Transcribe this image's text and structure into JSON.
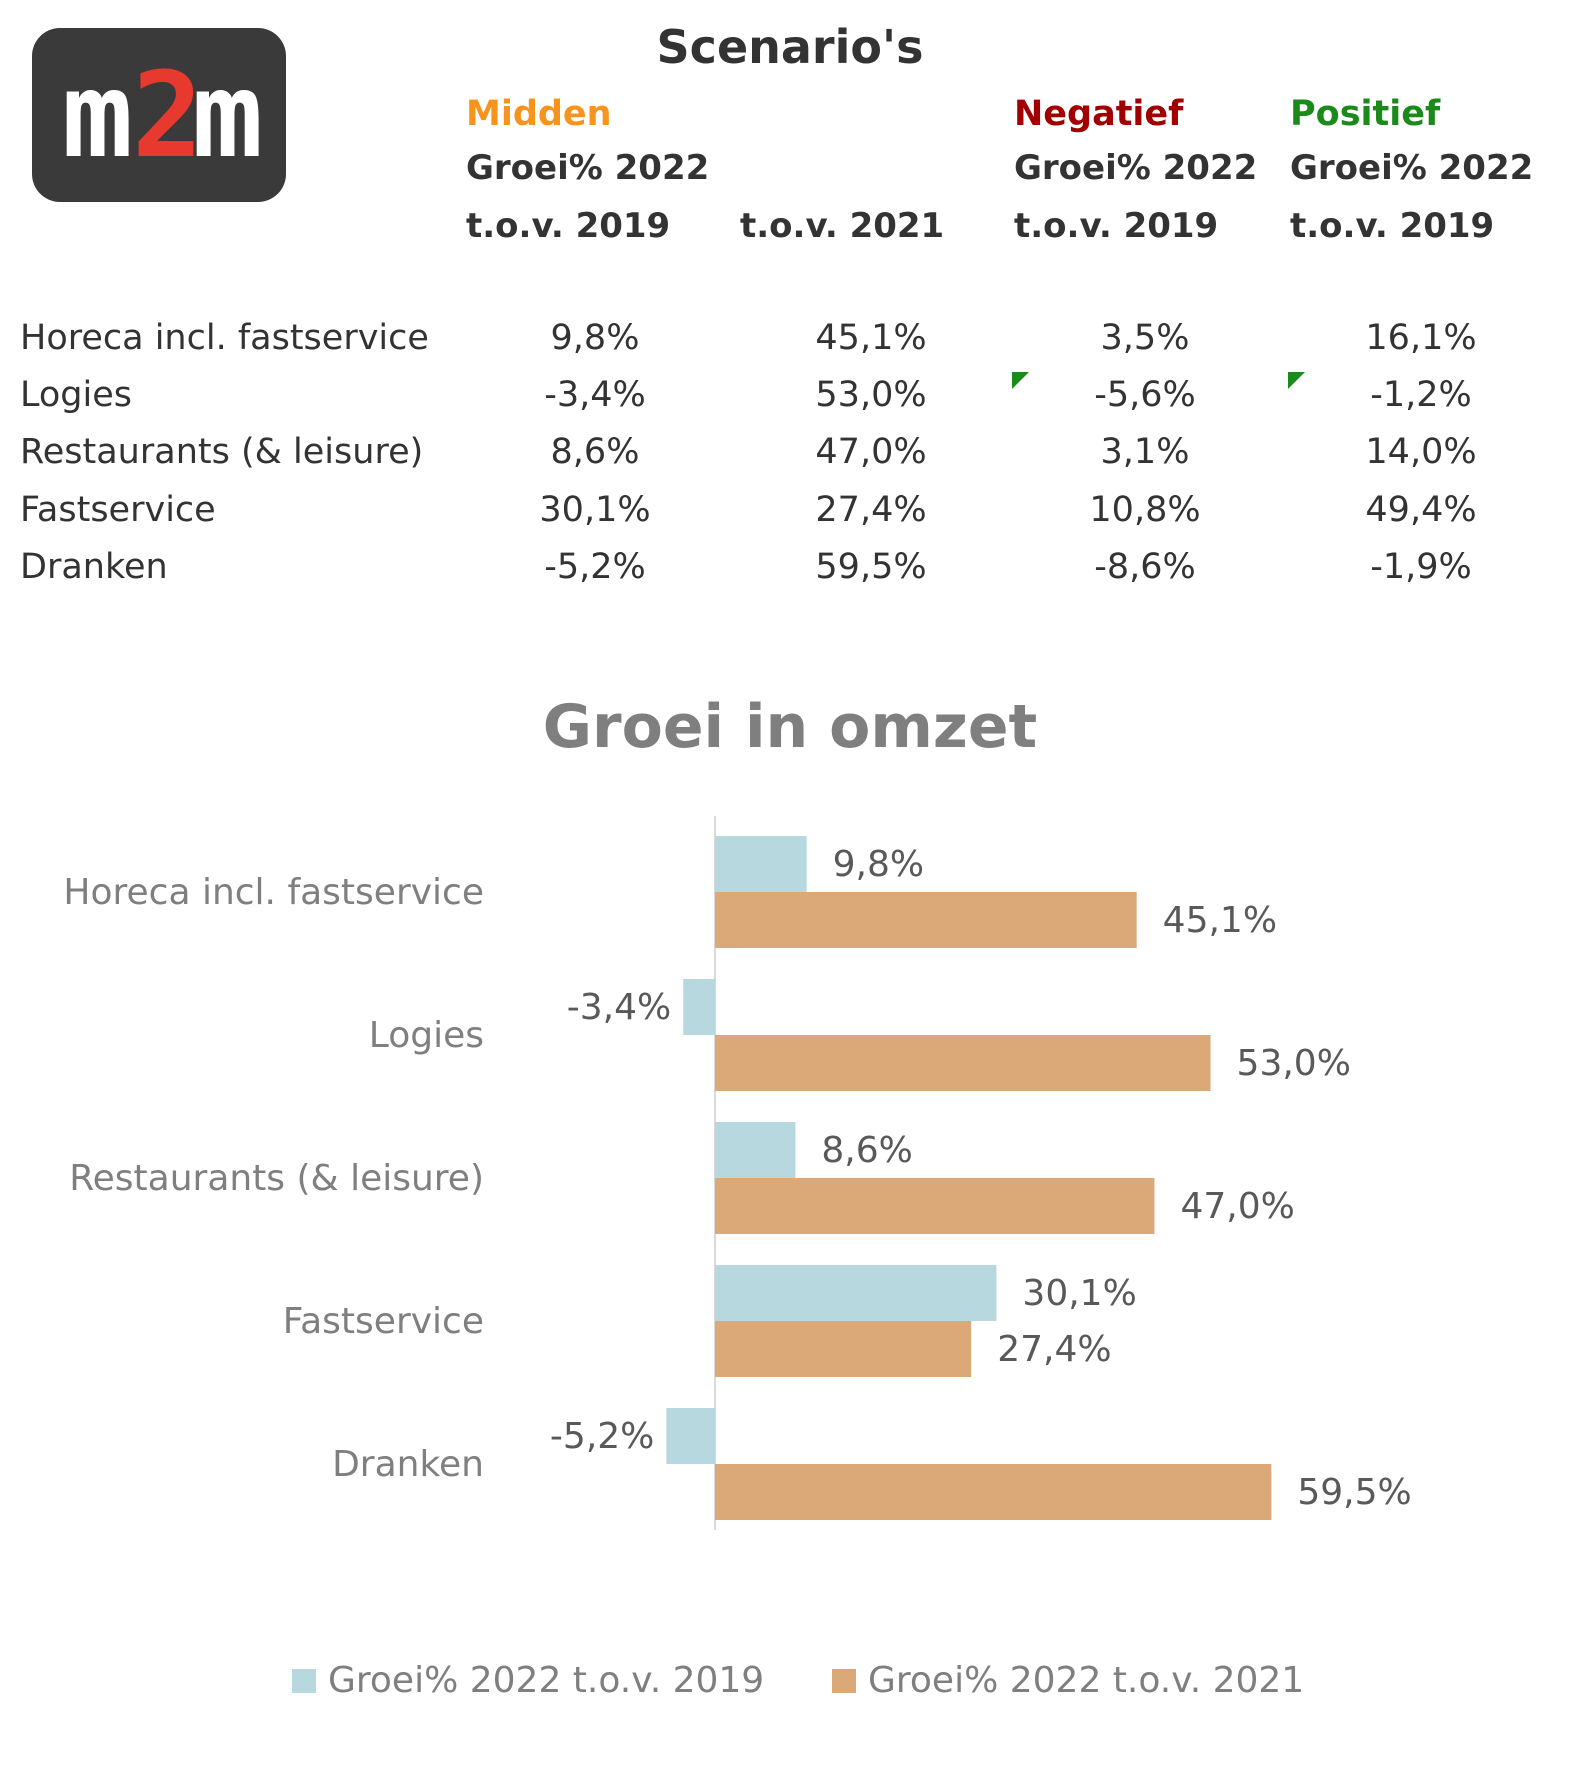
{
  "logo": {
    "text_m1": "m",
    "text_2": "2",
    "text_m2": "m",
    "bg": "#3a3a3a",
    "accent": "#e8392e"
  },
  "table": {
    "title": "Scenario's",
    "scenarios": {
      "midden": "Midden",
      "negatief": "Negatief",
      "positief": "Positief"
    },
    "subheads": {
      "groei": "Groei% 2022",
      "tov2019": "t.o.v. 2019",
      "tov2021": "t.o.v. 2021"
    },
    "rows": [
      {
        "label": "Horeca incl. fastservice",
        "midden2019": "9,8%",
        "midden2021": "45,1%",
        "negatief": "3,5%",
        "positief": "16,1%"
      },
      {
        "label": "Logies",
        "midden2019": "-3,4%",
        "midden2021": "53,0%",
        "negatief": "-5,6%",
        "positief": "-1,2%"
      },
      {
        "label": "Restaurants (& leisure)",
        "midden2019": "8,6%",
        "midden2021": "47,0%",
        "negatief": "3,1%",
        "positief": "14,0%"
      },
      {
        "label": "Fastservice",
        "midden2019": "30,1%",
        "midden2021": "27,4%",
        "negatief": "10,8%",
        "positief": "49,4%"
      },
      {
        "label": "Dranken",
        "midden2019": "-5,2%",
        "midden2021": "59,5%",
        "negatief": "-8,6%",
        "positief": "-1,9%"
      }
    ],
    "colors": {
      "midden": "#f7941d",
      "negatief": "#a00000",
      "positief": "#1a8a1a"
    }
  },
  "chart_data": {
    "type": "bar",
    "orientation": "horizontal",
    "title": "Groei in omzet",
    "categories": [
      "Horeca incl. fastservice",
      "Logies",
      "Restaurants (& leisure)",
      "Fastservice",
      "Dranken"
    ],
    "series": [
      {
        "name": "Groei% 2022 t.o.v. 2019",
        "values": [
          9.8,
          -3.4,
          8.6,
          30.1,
          -5.2
        ],
        "labels": [
          "9,8%",
          "-3,4%",
          "8,6%",
          "30,1%",
          "-5,2%"
        ],
        "color": "#b8d8e0"
      },
      {
        "name": "Groei% 2022 t.o.v. 2021",
        "values": [
          45.1,
          53.0,
          47.0,
          27.4,
          59.5
        ],
        "labels": [
          "45,1%",
          "53,0%",
          "47,0%",
          "27,4%",
          "59,5%"
        ],
        "color": "#dba978"
      }
    ],
    "xlim": [
      -10,
      70
    ],
    "grid": false,
    "legend": "bottom"
  }
}
